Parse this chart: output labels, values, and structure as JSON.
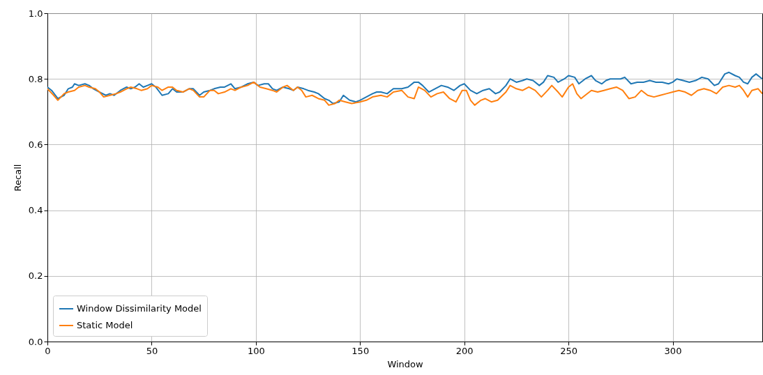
{
  "chart_data": {
    "type": "line",
    "xlabel": "Window",
    "ylabel": "Recall",
    "xlim": [
      0,
      343
    ],
    "ylim": [
      0,
      1
    ],
    "xticks": [
      0,
      50,
      100,
      150,
      200,
      250,
      300
    ],
    "yticks": [
      {
        "value": 0,
        "label": "0.0"
      },
      {
        "value": 0.2,
        "label": "0.2"
      },
      {
        "value": 0.4,
        "label": "0.4"
      },
      {
        "value": 0.6,
        "label": "0.6"
      },
      {
        "value": 0.8,
        "label": "0.8"
      },
      {
        "value": 1,
        "label": "1.0"
      }
    ],
    "grid": true,
    "legend": "bottom left",
    "line_style": "solid",
    "series": [
      {
        "name": "Window Dissimilarity Model",
        "color": "#1f77b4",
        "x": [
          0,
          2,
          5,
          8,
          10,
          12,
          13,
          15,
          18,
          20,
          22,
          25,
          28,
          30,
          32,
          35,
          38,
          40,
          42,
          44,
          46,
          48,
          50,
          52,
          55,
          58,
          60,
          62,
          65,
          68,
          70,
          73,
          75,
          78,
          80,
          83,
          85,
          88,
          90,
          93,
          96,
          99,
          101,
          104,
          106,
          108,
          110,
          113,
          116,
          118,
          120,
          123,
          125,
          128,
          130,
          133,
          135,
          137,
          140,
          142,
          145,
          148,
          150,
          153,
          156,
          158,
          160,
          163,
          166,
          170,
          173,
          176,
          178,
          180,
          183,
          186,
          189,
          192,
          195,
          198,
          200,
          203,
          206,
          209,
          212,
          215,
          217,
          220,
          222,
          225,
          228,
          230,
          233,
          236,
          238,
          240,
          243,
          245,
          248,
          250,
          253,
          255,
          258,
          261,
          263,
          266,
          268,
          270,
          273,
          275,
          277,
          280,
          283,
          286,
          289,
          292,
          295,
          298,
          300,
          302,
          305,
          308,
          311,
          314,
          317,
          320,
          322,
          325,
          327,
          330,
          332,
          334,
          336,
          338,
          340,
          343
        ],
        "values": [
          0.775,
          0.765,
          0.74,
          0.75,
          0.77,
          0.775,
          0.785,
          0.78,
          0.785,
          0.78,
          0.77,
          0.76,
          0.75,
          0.755,
          0.75,
          0.765,
          0.775,
          0.77,
          0.775,
          0.785,
          0.775,
          0.78,
          0.785,
          0.775,
          0.75,
          0.755,
          0.77,
          0.76,
          0.76,
          0.77,
          0.77,
          0.75,
          0.76,
          0.765,
          0.77,
          0.775,
          0.775,
          0.785,
          0.77,
          0.775,
          0.785,
          0.79,
          0.78,
          0.785,
          0.785,
          0.77,
          0.765,
          0.775,
          0.77,
          0.765,
          0.775,
          0.77,
          0.765,
          0.76,
          0.755,
          0.74,
          0.735,
          0.725,
          0.73,
          0.75,
          0.735,
          0.73,
          0.735,
          0.745,
          0.755,
          0.76,
          0.76,
          0.755,
          0.77,
          0.77,
          0.775,
          0.79,
          0.79,
          0.78,
          0.76,
          0.77,
          0.78,
          0.775,
          0.765,
          0.78,
          0.785,
          0.765,
          0.755,
          0.765,
          0.77,
          0.755,
          0.76,
          0.78,
          0.8,
          0.79,
          0.795,
          0.8,
          0.795,
          0.78,
          0.79,
          0.81,
          0.805,
          0.79,
          0.8,
          0.81,
          0.805,
          0.785,
          0.8,
          0.81,
          0.795,
          0.785,
          0.795,
          0.8,
          0.8,
          0.8,
          0.805,
          0.785,
          0.79,
          0.79,
          0.795,
          0.79,
          0.79,
          0.785,
          0.79,
          0.8,
          0.795,
          0.79,
          0.795,
          0.805,
          0.8,
          0.78,
          0.785,
          0.815,
          0.82,
          0.81,
          0.805,
          0.79,
          0.785,
          0.805,
          0.815,
          0.8
        ]
      },
      {
        "name": "Static Model",
        "color": "#ff7f0e",
        "x": [
          0,
          3,
          5,
          8,
          10,
          13,
          15,
          18,
          20,
          23,
          25,
          27,
          30,
          33,
          35,
          38,
          40,
          43,
          45,
          48,
          50,
          53,
          55,
          58,
          60,
          62,
          65,
          68,
          70,
          73,
          75,
          78,
          80,
          82,
          85,
          88,
          90,
          93,
          96,
          99,
          102,
          105,
          108,
          110,
          113,
          115,
          118,
          120,
          122,
          124,
          127,
          130,
          133,
          135,
          138,
          140,
          143,
          146,
          150,
          153,
          156,
          160,
          163,
          166,
          170,
          173,
          176,
          178,
          181,
          184,
          187,
          190,
          193,
          196,
          199,
          201,
          203,
          205,
          208,
          210,
          213,
          216,
          220,
          222,
          225,
          228,
          231,
          234,
          237,
          240,
          242,
          245,
          247,
          250,
          252,
          254,
          256,
          258,
          261,
          264,
          267,
          270,
          273,
          276,
          279,
          282,
          285,
          288,
          291,
          294,
          297,
          300,
          303,
          306,
          309,
          312,
          315,
          318,
          321,
          324,
          327,
          330,
          332,
          334,
          336,
          338,
          341,
          343
        ],
        "values": [
          0.77,
          0.75,
          0.735,
          0.755,
          0.76,
          0.765,
          0.775,
          0.78,
          0.775,
          0.77,
          0.76,
          0.745,
          0.75,
          0.755,
          0.76,
          0.77,
          0.775,
          0.77,
          0.765,
          0.77,
          0.78,
          0.775,
          0.765,
          0.775,
          0.775,
          0.765,
          0.76,
          0.77,
          0.765,
          0.745,
          0.745,
          0.765,
          0.765,
          0.755,
          0.76,
          0.77,
          0.765,
          0.775,
          0.78,
          0.79,
          0.775,
          0.77,
          0.765,
          0.76,
          0.775,
          0.78,
          0.765,
          0.775,
          0.765,
          0.745,
          0.75,
          0.74,
          0.735,
          0.72,
          0.725,
          0.735,
          0.73,
          0.725,
          0.73,
          0.735,
          0.745,
          0.75,
          0.745,
          0.76,
          0.765,
          0.745,
          0.74,
          0.775,
          0.765,
          0.745,
          0.755,
          0.76,
          0.74,
          0.73,
          0.765,
          0.765,
          0.735,
          0.72,
          0.735,
          0.74,
          0.73,
          0.735,
          0.76,
          0.78,
          0.77,
          0.765,
          0.775,
          0.765,
          0.745,
          0.765,
          0.78,
          0.76,
          0.745,
          0.775,
          0.785,
          0.755,
          0.74,
          0.75,
          0.765,
          0.76,
          0.765,
          0.77,
          0.775,
          0.765,
          0.74,
          0.745,
          0.765,
          0.75,
          0.745,
          0.75,
          0.755,
          0.76,
          0.765,
          0.76,
          0.75,
          0.765,
          0.77,
          0.765,
          0.755,
          0.775,
          0.78,
          0.775,
          0.78,
          0.765,
          0.745,
          0.765,
          0.77,
          0.755
        ]
      }
    ]
  }
}
